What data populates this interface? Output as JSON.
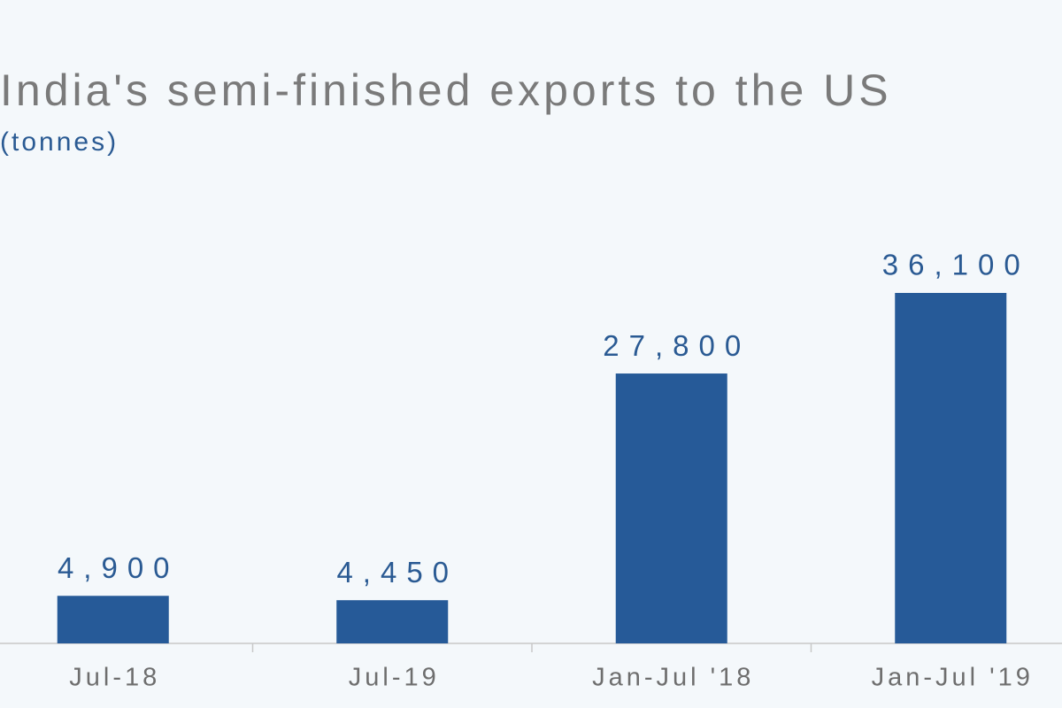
{
  "chart_data": {
    "type": "bar",
    "title": "India's semi-finished exports to the US",
    "subtitle": "(tonnes)",
    "categories": [
      "Jul-18",
      "Jul-19",
      "Jan-Jul '18",
      "Jan-Jul '19"
    ],
    "values": [
      4900,
      4450,
      27800,
      36100
    ],
    "value_labels": [
      "4,900",
      "4,450",
      "27,800",
      "36,100"
    ],
    "color": "#265a98"
  }
}
